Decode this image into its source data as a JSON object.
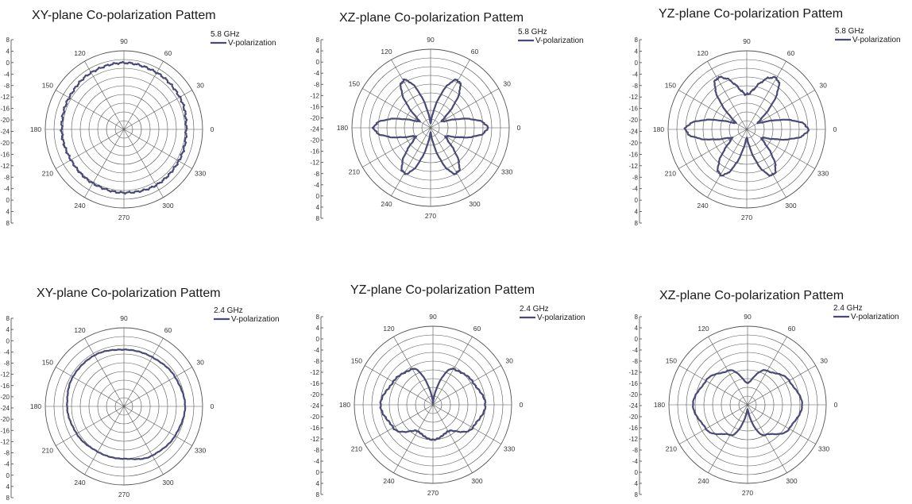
{
  "colors": {
    "trace": "#4a4a78",
    "grid": "#555555",
    "axis": "#444444"
  },
  "chart_data": [
    {
      "type": "polar",
      "title": "XY-plane Co-polarization Pattem",
      "legend": {
        "frequency": "5.8 GHz",
        "series": "V-polarization",
        "placement": "top-right"
      },
      "angle_labels": [
        "0",
        "30",
        "60",
        "90",
        "120",
        "150",
        "180",
        "210",
        "240",
        "270",
        "300",
        "330"
      ],
      "radial_ticks": [
        "8",
        "4",
        "0",
        "-4",
        "-8",
        "-12",
        "-16",
        "-20",
        "-24",
        "-20",
        "-16",
        "-12",
        "-8",
        "-4",
        "0",
        "4",
        "8"
      ],
      "rlim": [
        -28,
        8
      ],
      "grid": true,
      "pattern": "omni",
      "noise": 0.5,
      "series": [
        {
          "name": "V-polarization",
          "theta": [
            0,
            30,
            60,
            90,
            120,
            150,
            180,
            210,
            240,
            270,
            300,
            330
          ],
          "r": [
            0.5,
            1.5,
            2,
            2.5,
            2,
            1,
            0.5,
            0,
            0.5,
            1,
            1.5,
            1
          ]
        }
      ]
    },
    {
      "type": "polar",
      "title": "XZ-plane Co-polarization Pattem",
      "legend": {
        "frequency": "5.8 GHz",
        "series": "V-polarization",
        "placement": "top-right"
      },
      "angle_labels": [
        "0",
        "30",
        "60",
        "90",
        "120",
        "150",
        "180",
        "210",
        "240",
        "270",
        "300",
        "330"
      ],
      "radial_ticks": [
        "8",
        "4",
        "0",
        "-4",
        "-8",
        "-12",
        "-16",
        "-20",
        "-24",
        "-20",
        "-16",
        "-12",
        "-8",
        "-4",
        "0",
        "4",
        "8"
      ],
      "rlim": [
        -28,
        8
      ],
      "grid": true,
      "pattern": "six-lobe",
      "noise": 0.6,
      "series": [
        {
          "name": "V-polarization",
          "theta": [
            0,
            30,
            60,
            90,
            120,
            150,
            180,
            210,
            240,
            270,
            300,
            330
          ],
          "r": [
            -2,
            -22,
            -3,
            -26,
            -3,
            -22,
            -2,
            -20,
            -4,
            -26,
            -4,
            -20
          ]
        }
      ]
    },
    {
      "type": "polar",
      "title": "YZ-plane Co-polarization Pattem",
      "legend": {
        "frequency": "5.8 GHz",
        "series": "V-polarization",
        "placement": "top-right"
      },
      "angle_labels": [
        "0",
        "30",
        "60",
        "90",
        "120",
        "150",
        "180",
        "210",
        "240",
        "270",
        "300",
        "330"
      ],
      "radial_ticks": [
        "8",
        "4",
        "0",
        "-4",
        "-8",
        "-12",
        "-16",
        "-20",
        "-24",
        "-20",
        "-16",
        "-12",
        "-8",
        "-4",
        "0",
        "4",
        "8"
      ],
      "rlim": [
        -28,
        8
      ],
      "grid": true,
      "pattern": "six-lobe",
      "noise": 0.6,
      "series": [
        {
          "name": "V-polarization",
          "theta": [
            0,
            30,
            60,
            90,
            120,
            150,
            180,
            210,
            240,
            270,
            300,
            330
          ],
          "r": [
            0,
            -22,
            -1,
            -12,
            -1,
            -22,
            0,
            -20,
            -4,
            -24,
            -4,
            -20
          ]
        }
      ]
    },
    {
      "type": "polar",
      "title": "XY-plane Co-polarization Pattem",
      "legend": {
        "frequency": "2.4 GHz",
        "series": "V-polarization",
        "placement": "top-right"
      },
      "angle_labels": [
        "0",
        "30",
        "60",
        "90",
        "120",
        "150",
        "180",
        "210",
        "240",
        "270",
        "300",
        "330"
      ],
      "radial_ticks": [
        "8",
        "4",
        "0",
        "-4",
        "-8",
        "-12",
        "-16",
        "-20",
        "-24",
        "-20",
        "-16",
        "-12",
        "-8",
        "-4",
        "0",
        "4",
        "8"
      ],
      "rlim": [
        -28,
        8
      ],
      "grid": true,
      "pattern": "omni",
      "noise": 0.15,
      "series": [
        {
          "name": "V-polarization",
          "theta": [
            0,
            30,
            60,
            90,
            120,
            150,
            180,
            210,
            240,
            270,
            300,
            330
          ],
          "r": [
            0,
            -1,
            -2,
            -2,
            -1,
            -1,
            -2,
            -3,
            -4,
            -4,
            -2,
            -1
          ]
        }
      ]
    },
    {
      "type": "polar",
      "title": "YZ-plane Co-polarization Pattem",
      "legend": {
        "frequency": "2.4 GHz",
        "series": "V-polarization",
        "placement": "top-right"
      },
      "angle_labels": [
        "0",
        "30",
        "60",
        "90",
        "120",
        "150",
        "180",
        "210",
        "240",
        "270",
        "300",
        "330"
      ],
      "radial_ticks": [
        "8",
        "4",
        "0",
        "-4",
        "-8",
        "-12",
        "-16",
        "-20",
        "-24",
        "-20",
        "-16",
        "-12",
        "-8",
        "-4",
        "0",
        "4",
        "8"
      ],
      "rlim": [
        -28,
        8
      ],
      "grid": true,
      "pattern": "figure-eight",
      "noise": 0.3,
      "series": [
        {
          "name": "V-polarization",
          "theta": [
            0,
            30,
            60,
            90,
            120,
            150,
            180,
            210,
            240,
            270,
            300,
            330
          ],
          "r": [
            -4,
            -7,
            -9,
            -27,
            -9,
            -7,
            -4,
            -7,
            -14,
            -12,
            -14,
            -7
          ]
        }
      ]
    },
    {
      "type": "polar",
      "title": "XZ-plane Co-polarization Pattem",
      "legend": {
        "frequency": "2.4 GHz",
        "series": "V-polarization",
        "placement": "top-right"
      },
      "angle_labels": [
        "0",
        "30",
        "60",
        "90",
        "120",
        "150",
        "180",
        "210",
        "240",
        "270",
        "300",
        "330"
      ],
      "radial_ticks": [
        "8",
        "4",
        "0",
        "-4",
        "-8",
        "-12",
        "-16",
        "-20",
        "-24",
        "-20",
        "-16",
        "-12",
        "-8",
        "-4",
        "0",
        "4",
        "8"
      ],
      "rlim": [
        -28,
        8
      ],
      "grid": true,
      "pattern": "figure-eight",
      "noise": 0.15,
      "series": [
        {
          "name": "V-polarization",
          "theta": [
            0,
            30,
            60,
            90,
            120,
            150,
            180,
            210,
            240,
            270,
            300,
            330
          ],
          "r": [
            -3,
            -6,
            -10,
            -18,
            -10,
            -6,
            -3,
            -6,
            -12,
            -26,
            -12,
            -6
          ]
        }
      ]
    }
  ]
}
